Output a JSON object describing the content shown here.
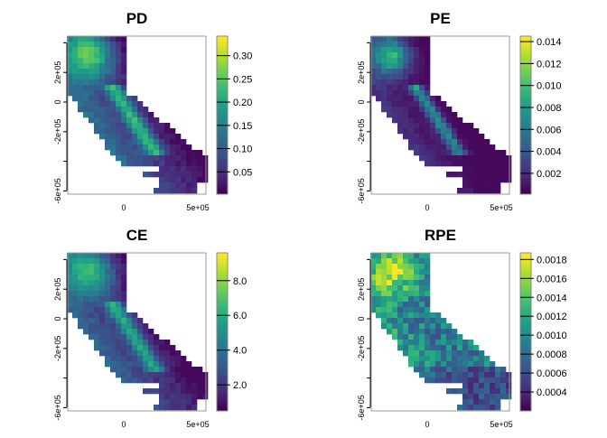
{
  "panels": [
    {
      "title": "PD",
      "min": 0.002,
      "max": 0.342,
      "ticks": [
        {
          "v": 0.05,
          "label": "0.05"
        },
        {
          "v": 0.1,
          "label": "0.10"
        },
        {
          "v": 0.15,
          "label": "0.15"
        },
        {
          "v": 0.2,
          "label": "0.20"
        },
        {
          "v": 0.25,
          "label": "0.25"
        },
        {
          "v": 0.3,
          "label": "0.30"
        }
      ]
    },
    {
      "title": "PE",
      "min": 0.0001,
      "max": 0.0145,
      "ticks": [
        {
          "v": 0.002,
          "label": "0.002"
        },
        {
          "v": 0.004,
          "label": "0.004"
        },
        {
          "v": 0.006,
          "label": "0.006"
        },
        {
          "v": 0.008,
          "label": "0.008"
        },
        {
          "v": 0.01,
          "label": "0.010"
        },
        {
          "v": 0.012,
          "label": "0.012"
        },
        {
          "v": 0.014,
          "label": "0.014"
        }
      ]
    },
    {
      "title": "CE",
      "min": 0.5,
      "max": 9.6,
      "ticks": [
        {
          "v": 2,
          "label": "2.0"
        },
        {
          "v": 4,
          "label": "4.0"
        },
        {
          "v": 6,
          "label": "6.0"
        },
        {
          "v": 8,
          "label": "8.0"
        }
      ]
    },
    {
      "title": "RPE",
      "min": 0.0002,
      "max": 0.00187,
      "ticks": [
        {
          "v": 0.0004,
          "label": "0.0004"
        },
        {
          "v": 0.0006,
          "label": "0.0006"
        },
        {
          "v": 0.0008,
          "label": "0.0008"
        },
        {
          "v": 0.001,
          "label": "0.0010"
        },
        {
          "v": 0.0012,
          "label": "0.0012"
        },
        {
          "v": 0.0014,
          "label": "0.0014"
        },
        {
          "v": 0.0016,
          "label": "0.0016"
        },
        {
          "v": 0.0018,
          "label": "0.0018"
        }
      ]
    }
  ],
  "y_axis": {
    "ticks": [
      {
        "v": 400000,
        "label": ""
      },
      {
        "v": 200000,
        "label": "2e+05"
      },
      {
        "v": 0,
        "label": "0"
      },
      {
        "v": -200000,
        "label": "-2e+05"
      },
      {
        "v": -400000,
        "label": ""
      },
      {
        "v": -600000,
        "label": "-6e+05"
      }
    ]
  },
  "x_axis": {
    "ticks": [
      {
        "v": 0,
        "label": "0"
      },
      {
        "v": 500000,
        "label": "5e+05"
      }
    ]
  },
  "palette": [
    "#440154",
    "#482878",
    "#3e4a89",
    "#31688e",
    "#26828e",
    "#1f9e89",
    "#35b779",
    "#6ece58",
    "#b5de2b",
    "#fde725"
  ]
}
